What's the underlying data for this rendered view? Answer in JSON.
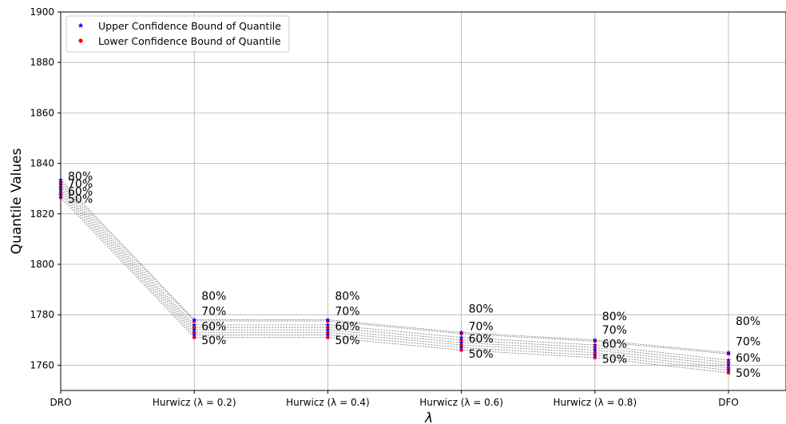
{
  "chart_data": {
    "type": "scatter",
    "title": "",
    "xlabel": "λ",
    "ylabel": "Quantile Values",
    "categories": [
      "DRO",
      "Hurwicz (λ = 0.2)",
      "Hurwicz (λ = 0.4)",
      "Hurwicz (λ = 0.6)",
      "Hurwicz (λ = 0.8)",
      "DFO"
    ],
    "ylim": [
      1750,
      1900
    ],
    "yticks": [
      1760,
      1780,
      1800,
      1820,
      1840,
      1860,
      1880,
      1900
    ],
    "grid": true,
    "legend_position": "top-left",
    "quantile_labels": [
      "50%",
      "60%",
      "70%",
      "80%"
    ],
    "label_values": [
      [
        1826,
        1829,
        1832,
        1835
      ],
      [
        1770,
        1775.5,
        1781.5,
        1787.5
      ],
      [
        1770,
        1775.5,
        1781.5,
        1787.5
      ],
      [
        1764.5,
        1770.5,
        1775.5,
        1782.5
      ],
      [
        1762.5,
        1768.5,
        1774,
        1779.5
      ],
      [
        1757,
        1763,
        1769.5,
        1777.5
      ]
    ],
    "series": [
      {
        "name": "Upper Confidence Bound of Quantile",
        "marker": "star",
        "color": "#0000ff",
        "values": [
          [
            1827.5,
            1829.5,
            1831.5,
            1833.5
          ],
          [
            1772,
            1774,
            1776,
            1778
          ],
          [
            1772,
            1774,
            1776,
            1778
          ],
          [
            1767,
            1769,
            1771,
            1773
          ],
          [
            1764,
            1766,
            1768,
            1770
          ],
          [
            1758,
            1760,
            1762,
            1765
          ]
        ]
      },
      {
        "name": "Lower Confidence Bound of Quantile",
        "marker": "circle",
        "color": "#ff0000",
        "values": [
          [
            1826.5,
            1828.5,
            1830.5,
            1832.5
          ],
          [
            1771,
            1773,
            1775,
            1777.5
          ],
          [
            1771,
            1773,
            1775,
            1777.5
          ],
          [
            1766,
            1768,
            1770,
            1772.5
          ],
          [
            1763,
            1765,
            1767,
            1769.5
          ],
          [
            1757,
            1759,
            1761,
            1764.5
          ]
        ]
      }
    ]
  }
}
